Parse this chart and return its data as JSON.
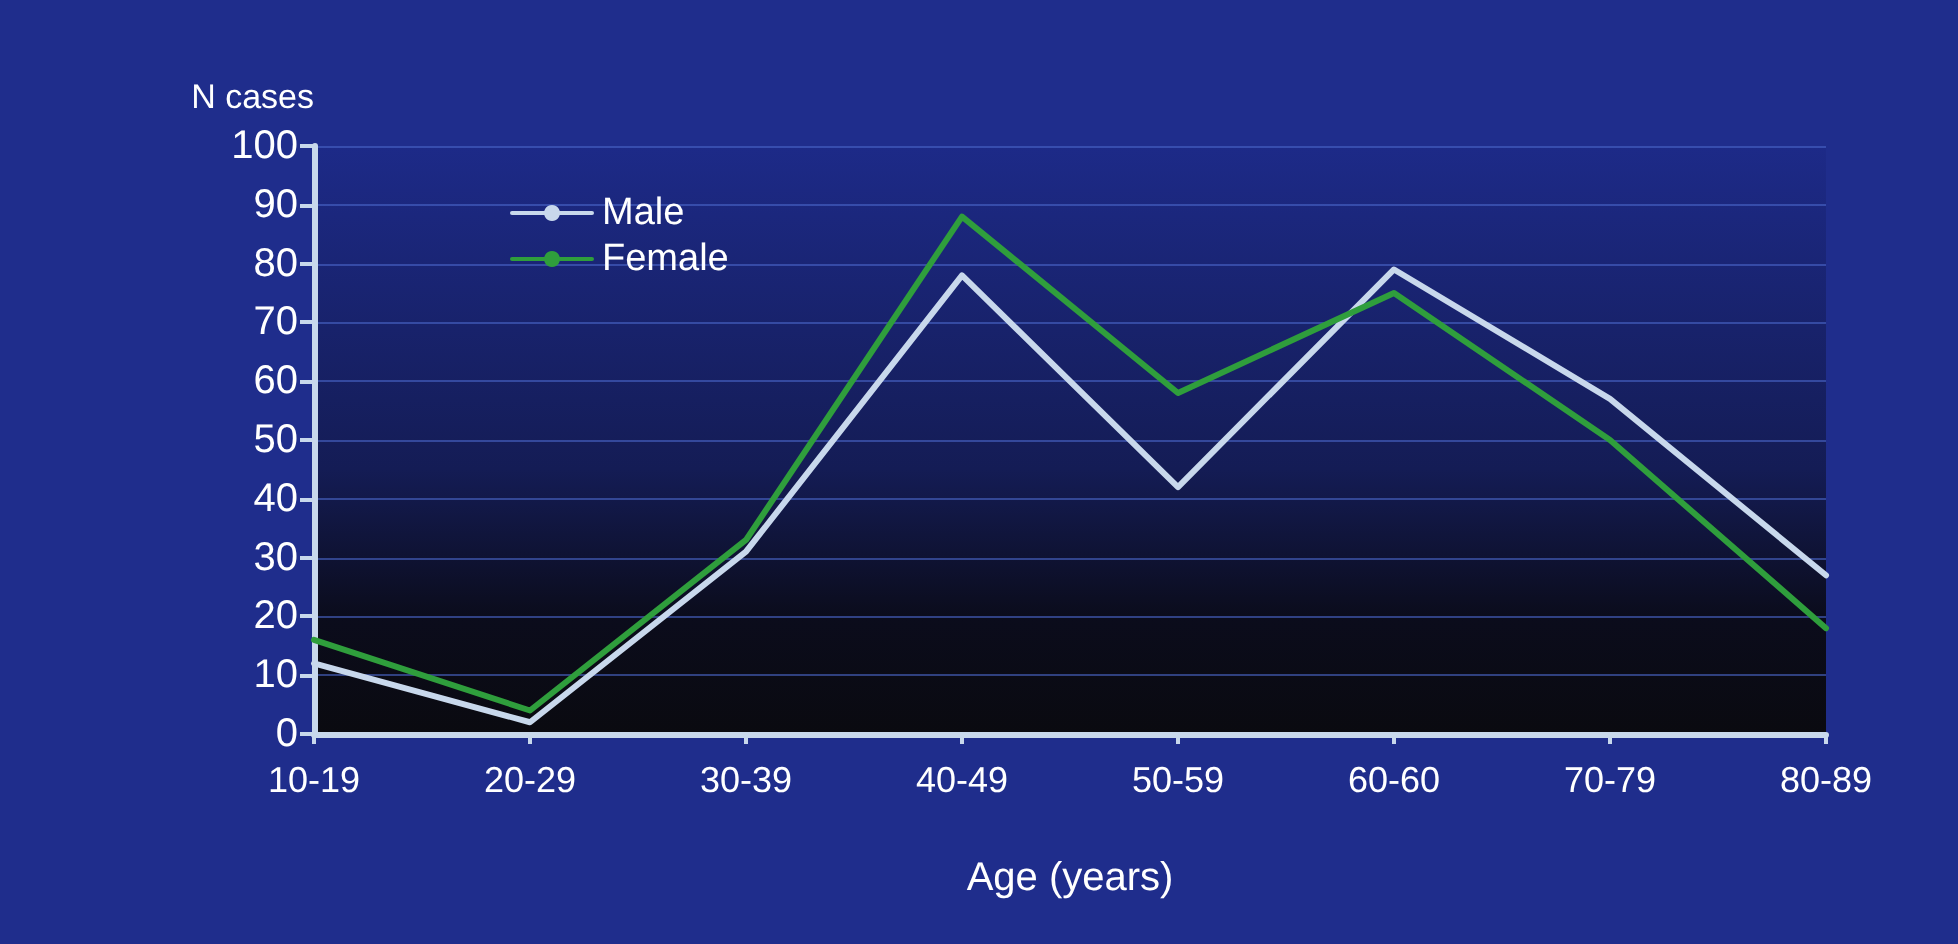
{
  "chart_data": {
    "type": "line",
    "xlabel": "Age (years)",
    "ylabel": "N cases",
    "categories": [
      "10-19",
      "20-29",
      "30-39",
      "40-49",
      "50-59",
      "60-60",
      "70-79",
      "80-89"
    ],
    "series": [
      {
        "name": "Male",
        "color": "#c8d8ec",
        "values": [
          12,
          2,
          31,
          78,
          42,
          79,
          57,
          27
        ]
      },
      {
        "name": "Female",
        "color": "#2f9e3c",
        "values": [
          16,
          4,
          33,
          88,
          58,
          75,
          50,
          18
        ]
      }
    ],
    "ylim": [
      0,
      100
    ],
    "yticks": [
      0,
      10,
      20,
      30,
      40,
      50,
      60,
      70,
      80,
      90,
      100
    ],
    "grid": "y",
    "legend": "top left",
    "marker": "none",
    "line_style": "solid"
  }
}
